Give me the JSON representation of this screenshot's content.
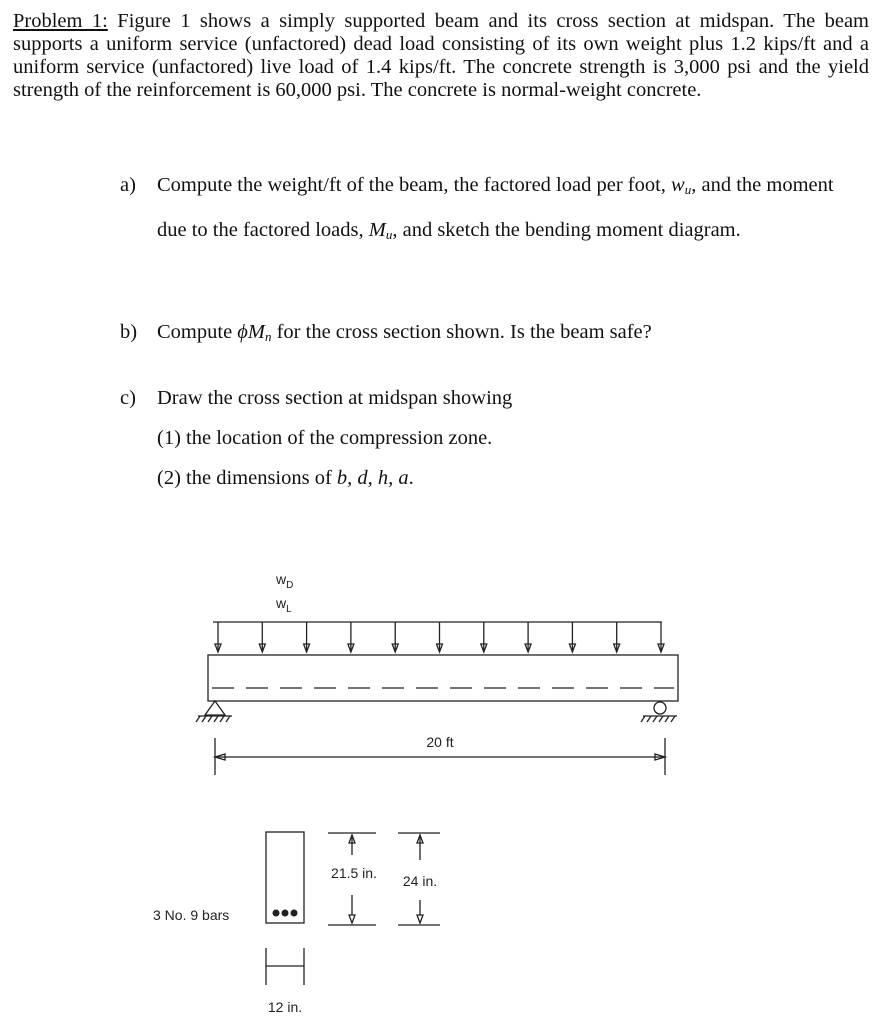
{
  "problem": {
    "label": "Problem 1:",
    "text": "Figure 1 shows a simply supported beam and its cross section at midspan. The beam supports a uniform service (unfactored) dead load consisting of its own weight plus 1.2 kips/ft and a uniform service (unfactored) live load of 1.4 kips/ft. The concrete strength is 3,000 psi and the yield strength of the reinforcement is 60,000 psi. The concrete is normal-weight concrete."
  },
  "parts": [
    {
      "label": "a)",
      "segments": [
        "Compute the weight/ft of the beam, the factored load per foot, ",
        "w",
        "u",
        ", and the moment due to the factored loads, ",
        "M",
        "u",
        ", and sketch the bending moment diagram."
      ]
    },
    {
      "label": "b)",
      "segments": [
        "Compute ",
        "ϕM",
        "n",
        " for the cross section shown. Is the beam safe?"
      ]
    },
    {
      "label": "c)",
      "text": "Draw the cross section at midspan showing",
      "items": [
        {
          "segments": [
            "(1) the location of the compression zone."
          ]
        },
        {
          "segments": [
            "(2) the dimensions of ",
            "b, d, h, a",
            "."
          ]
        }
      ]
    }
  ],
  "figure": {
    "wd": [
      "w",
      "D"
    ],
    "wl": [
      "w",
      "L"
    ],
    "span": "20 ft",
    "depth_d": "21.5 in.",
    "depth_h": "24 in.",
    "bars": "3 No. 9 bars",
    "width": "12 in."
  }
}
